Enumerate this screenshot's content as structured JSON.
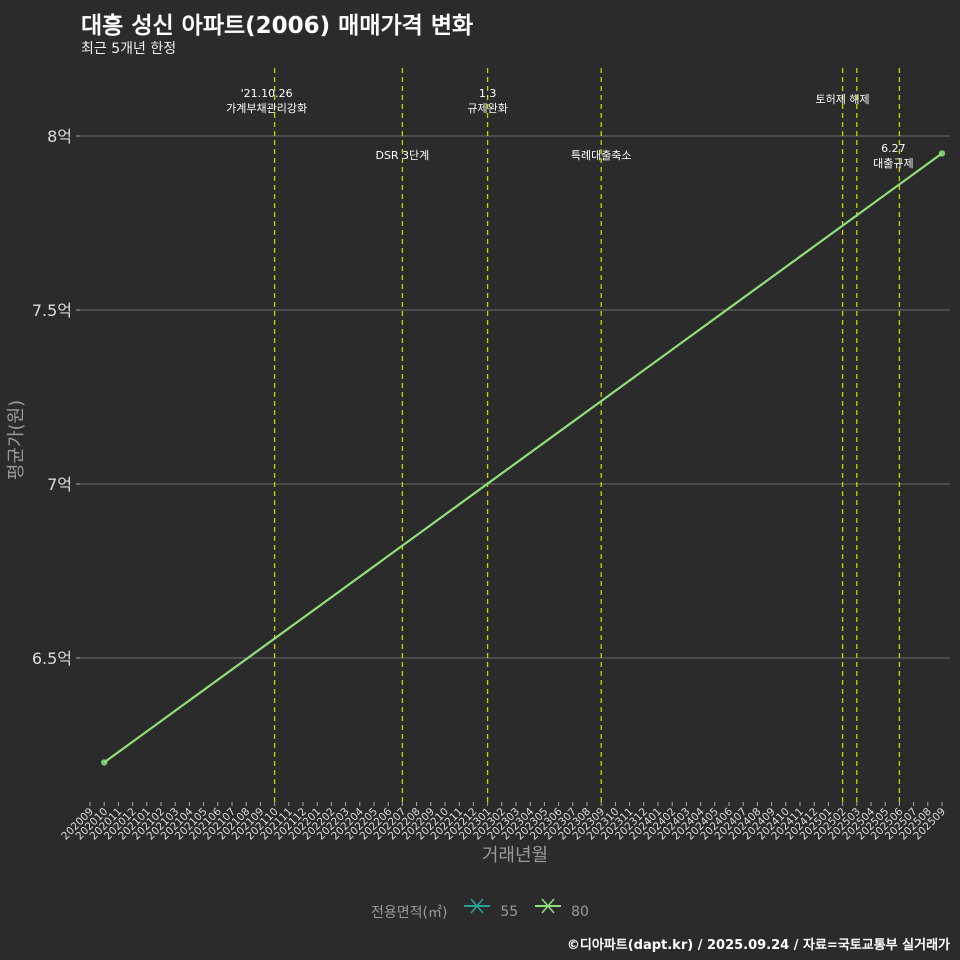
{
  "title": "대흥 성신 아파트(2006) 매매가격 변화",
  "subtitle": "최근 5개년 한정",
  "caption": "©디아파트(dapt.kr) / 2025.09.24 / 자료=국토교통부 실거래가",
  "chart_data": {
    "type": "line",
    "xlabel": "거래년월",
    "ylabel": "평균가(원)",
    "categories": [
      "202009",
      "202010",
      "202011",
      "202012",
      "202101",
      "202102",
      "202103",
      "202104",
      "202105",
      "202106",
      "202107",
      "202108",
      "202109",
      "202110",
      "202111",
      "202112",
      "202201",
      "202202",
      "202203",
      "202204",
      "202205",
      "202206",
      "202207",
      "202208",
      "202209",
      "202210",
      "202211",
      "202212",
      "202301",
      "202302",
      "202303",
      "202304",
      "202305",
      "202306",
      "202307",
      "202308",
      "202309",
      "202310",
      "202311",
      "202312",
      "202401",
      "202402",
      "202403",
      "202404",
      "202405",
      "202406",
      "202407",
      "202408",
      "202409",
      "202410",
      "202411",
      "202412",
      "202501",
      "202502",
      "202503",
      "202504",
      "202505",
      "202506",
      "202507",
      "202508",
      "202509"
    ],
    "yticks": [
      {
        "value": 6.5,
        "label": "6.5억"
      },
      {
        "value": 7,
        "label": "7억"
      },
      {
        "value": 7.5,
        "label": "7.5억"
      },
      {
        "value": 8,
        "label": "8억"
      }
    ],
    "ylim": [
      6.1,
      8.2
    ],
    "legend_title": "전용면적(㎡)",
    "legend_position": "bottom",
    "series": [
      {
        "name": "55",
        "color": "#2aa198",
        "points": []
      },
      {
        "name": "80",
        "color": "#8fe07a",
        "points": [
          {
            "x": "202010",
            "y": 6.2
          },
          {
            "x": "202509",
            "y": 7.95
          }
        ]
      }
    ],
    "annotations": [
      {
        "x": "202110",
        "lines": [
          "'21.10.26",
          "가계부채관리강화"
        ]
      },
      {
        "x": "202207",
        "lines": [
          "DSR 3단계"
        ]
      },
      {
        "x": "202301",
        "lines": [
          "1.3",
          "규제완화"
        ]
      },
      {
        "x": "202309",
        "lines": [
          "특례대출축소"
        ]
      },
      {
        "x": "202502",
        "lines": [
          "토허제 해제"
        ]
      },
      {
        "x": "202503",
        "lines": []
      },
      {
        "x": "202506",
        "lines": [
          "6.27",
          "대출규제"
        ]
      }
    ],
    "annotation_line_color": "#c8d400"
  }
}
